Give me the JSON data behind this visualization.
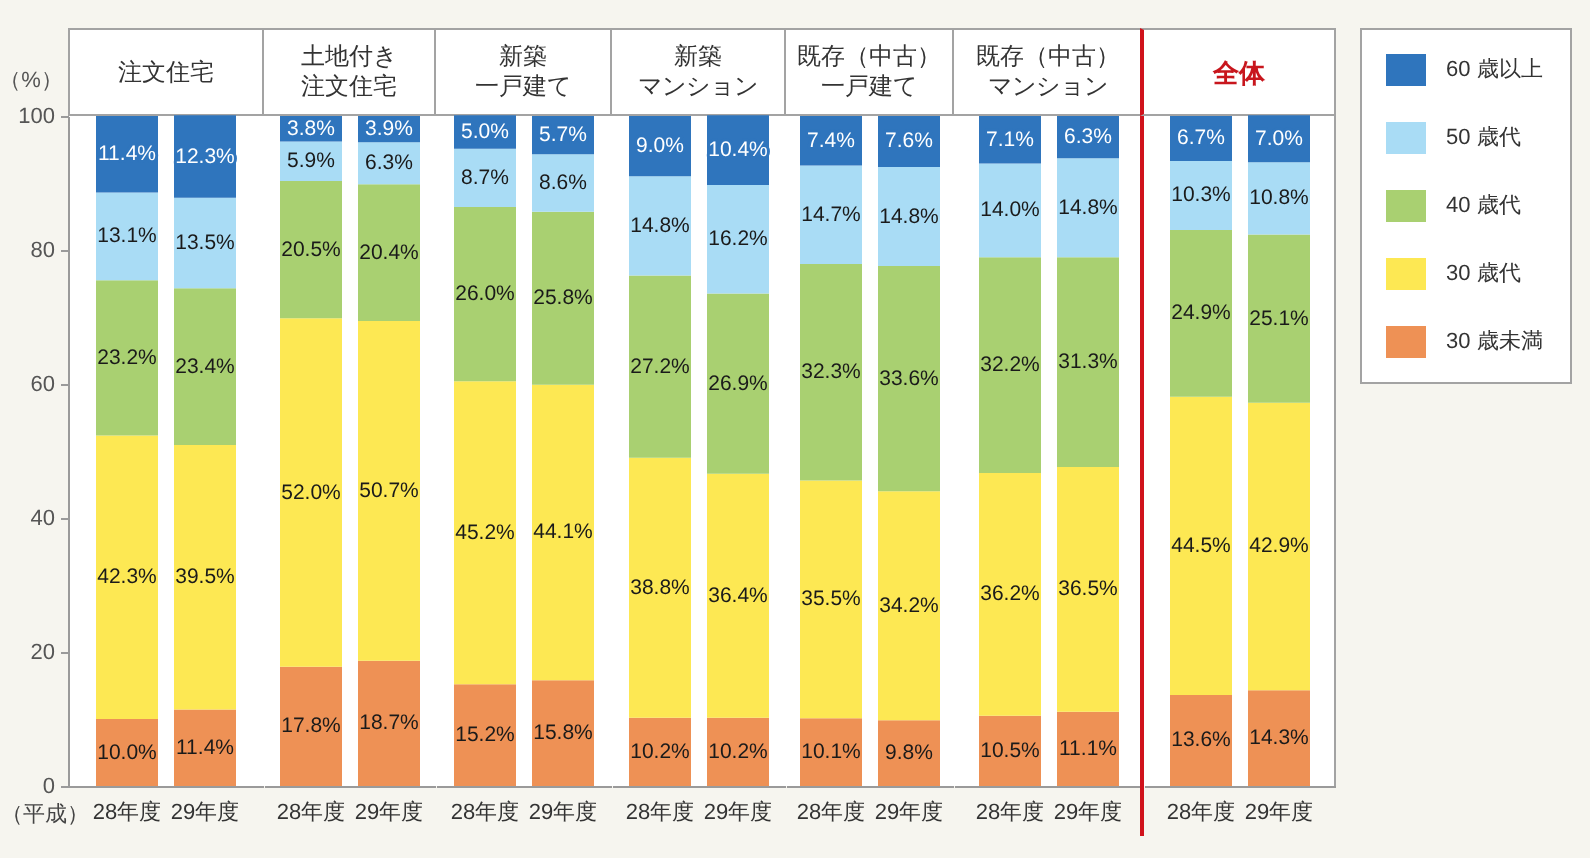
{
  "chart_data": [
    {
      "type": "bar",
      "title": "注文住宅",
      "ylabel": "（%）",
      "xlabel": "（平成）",
      "categories": [
        "28年度",
        "29年度"
      ],
      "stacked": true,
      "ylim": [
        0,
        100
      ],
      "yticks": [
        0,
        20,
        40,
        60,
        80,
        100
      ],
      "series": [
        {
          "color": "#ee9155",
          "values": [
            10.0,
            11.4
          ],
          "value_labels": [
            "10.0%",
            "11.4%"
          ]
        },
        {
          "color": "#fde853",
          "values": [
            42.3,
            39.5
          ],
          "value_labels": [
            "42.3%",
            "39.5%"
          ]
        },
        {
          "color": "#a9d071",
          "values": [
            23.2,
            23.4
          ],
          "value_labels": [
            "23.2%",
            "23.4%"
          ]
        },
        {
          "color": "#a9dcf5",
          "values": [
            13.1,
            13.5
          ],
          "value_labels": [
            "13.1%",
            "13.5%"
          ]
        },
        {
          "color": "#2f75bd",
          "values": [
            11.4,
            12.3
          ],
          "value_labels": [
            "11.4%",
            "12.3%"
          ]
        }
      ]
    },
    {
      "type": "bar",
      "title": "土地付き注文住宅",
      "categories": [
        "28年度",
        "29年度"
      ],
      "stacked": true,
      "ylim": [
        0,
        100
      ],
      "yticks": [
        0,
        20,
        40,
        60,
        80,
        100
      ],
      "tick_labels": "x",
      "series": [
        {
          "color": "#ee9155",
          "values": [
            17.8,
            18.7
          ],
          "value_labels": [
            "17.8%",
            "18.7%"
          ]
        },
        {
          "color": "#fde853",
          "values": [
            52.0,
            50.7
          ],
          "value_labels": [
            "52.0%",
            "50.7%"
          ]
        },
        {
          "color": "#a9d071",
          "values": [
            20.5,
            20.4
          ],
          "value_labels": [
            "20.5%",
            "20.4%"
          ]
        },
        {
          "color": "#a9dcf5",
          "values": [
            5.9,
            6.3
          ],
          "value_labels": [
            "5.9%",
            "6.3%"
          ]
        },
        {
          "color": "#2f75bd",
          "values": [
            3.8,
            3.9
          ],
          "value_labels": [
            "3.8%",
            "3.9%"
          ]
        }
      ]
    },
    {
      "type": "bar",
      "title": "新築一戸建て",
      "categories": [
        "28年度",
        "29年度"
      ],
      "stacked": true,
      "ylim": [
        0,
        100
      ],
      "yticks": [
        0,
        20,
        40,
        60,
        80,
        100
      ],
      "tick_labels": "x",
      "series": [
        {
          "color": "#ee9155",
          "values": [
            15.2,
            15.8
          ],
          "value_labels": [
            "15.2%",
            "15.8%"
          ]
        },
        {
          "color": "#fde853",
          "values": [
            45.2,
            44.1
          ],
          "value_labels": [
            "45.2%",
            "44.1%"
          ]
        },
        {
          "color": "#a9d071",
          "values": [
            26.0,
            25.8
          ],
          "value_labels": [
            "26.0%",
            "25.8%"
          ]
        },
        {
          "color": "#a9dcf5",
          "values": [
            8.7,
            8.6
          ],
          "value_labels": [
            "8.7%",
            "8.6%"
          ]
        },
        {
          "color": "#2f75bd",
          "values": [
            5.0,
            5.7
          ],
          "value_labels": [
            "5.0%",
            "5.7%"
          ]
        }
      ]
    },
    {
      "type": "bar",
      "title": "新築マンション",
      "categories": [
        "28年度",
        "29年度"
      ],
      "stacked": true,
      "ylim": [
        0,
        100
      ],
      "yticks": [
        0,
        20,
        40,
        60,
        80,
        100
      ],
      "tick_labels": "x",
      "series": [
        {
          "color": "#ee9155",
          "values": [
            10.2,
            10.2
          ],
          "value_labels": [
            "10.2%",
            "10.2%"
          ]
        },
        {
          "color": "#fde853",
          "values": [
            38.8,
            36.4
          ],
          "value_labels": [
            "38.8%",
            "36.4%"
          ]
        },
        {
          "color": "#a9d071",
          "values": [
            27.2,
            26.9
          ],
          "value_labels": [
            "27.2%",
            "26.9%"
          ]
        },
        {
          "color": "#a9dcf5",
          "values": [
            14.8,
            16.2
          ],
          "value_labels": [
            "14.8%",
            "16.2%"
          ]
        },
        {
          "color": "#2f75bd",
          "values": [
            9.0,
            10.4
          ],
          "value_labels": [
            "9.0%",
            "10.4%"
          ]
        }
      ]
    },
    {
      "type": "bar",
      "title": "既存（中古）一戸建て",
      "categories": [
        "28年度",
        "29年度"
      ],
      "stacked": true,
      "ylim": [
        0,
        100
      ],
      "yticks": [
        0,
        20,
        40,
        60,
        80,
        100
      ],
      "tick_labels": "x",
      "series": [
        {
          "color": "#ee9155",
          "values": [
            10.1,
            9.8
          ],
          "value_labels": [
            "10.1%",
            "9.8%"
          ]
        },
        {
          "color": "#fde853",
          "values": [
            35.5,
            34.2
          ],
          "value_labels": [
            "35.5%",
            "34.2%"
          ]
        },
        {
          "color": "#a9d071",
          "values": [
            32.3,
            33.6
          ],
          "value_labels": [
            "32.3%",
            "33.6%"
          ]
        },
        {
          "color": "#a9dcf5",
          "values": [
            14.7,
            14.8
          ],
          "value_labels": [
            "14.7%",
            "14.8%"
          ]
        },
        {
          "color": "#2f75bd",
          "values": [
            7.4,
            7.6
          ],
          "value_labels": [
            "7.4%",
            "7.6%"
          ]
        }
      ]
    },
    {
      "type": "bar",
      "title": "既存（中古）マンション",
      "categories": [
        "28年度",
        "29年度"
      ],
      "stacked": true,
      "ylim": [
        0,
        100
      ],
      "yticks": [
        0,
        20,
        40,
        60,
        80,
        100
      ],
      "tick_labels": "x",
      "series": [
        {
          "color": "#ee9155",
          "values": [
            10.5,
            11.1
          ],
          "value_labels": [
            "10.5%",
            "11.1%"
          ]
        },
        {
          "color": "#fde853",
          "values": [
            36.2,
            36.5
          ],
          "value_labels": [
            "36.2%",
            "36.5%"
          ]
        },
        {
          "color": "#a9d071",
          "values": [
            32.2,
            31.3
          ],
          "value_labels": [
            "32.2%",
            "31.3%"
          ]
        },
        {
          "color": "#a9dcf5",
          "values": [
            14.0,
            14.8
          ],
          "value_labels": [
            "14.0%",
            "14.8%"
          ]
        },
        {
          "color": "#2f75bd",
          "values": [
            7.1,
            6.3
          ],
          "value_labels": [
            "7.1%",
            "6.3%"
          ]
        }
      ]
    },
    {
      "type": "bar",
      "title": "全体",
      "categories": [
        "28年度",
        "29年度"
      ],
      "stacked": true,
      "ylim": [
        0,
        100
      ],
      "yticks": [
        0,
        20,
        40,
        60,
        80,
        100
      ],
      "tick_labels": "x",
      "legend": "right",
      "series": [
        {
          "name": "30 歳未満",
          "color": "#ee9155",
          "values": [
            13.6,
            14.3
          ],
          "value_labels": [
            "13.6%",
            "14.3%"
          ]
        },
        {
          "name": "30 歳代",
          "color": "#fde853",
          "values": [
            44.5,
            42.9
          ],
          "value_labels": [
            "44.5%",
            "42.9%"
          ]
        },
        {
          "name": "40 歳代",
          "color": "#a9d071",
          "values": [
            24.9,
            25.1
          ],
          "value_labels": [
            "24.9%",
            "25.1%"
          ]
        },
        {
          "name": "50 歳代",
          "color": "#a9dcf5",
          "values": [
            10.3,
            10.8
          ],
          "value_labels": [
            "10.3%",
            "10.8%"
          ]
        },
        {
          "name": "60 歳以上",
          "color": "#2f75bd",
          "values": [
            6.7,
            7.0
          ],
          "value_labels": [
            "6.7%",
            "7.0%"
          ]
        }
      ]
    }
  ]
}
